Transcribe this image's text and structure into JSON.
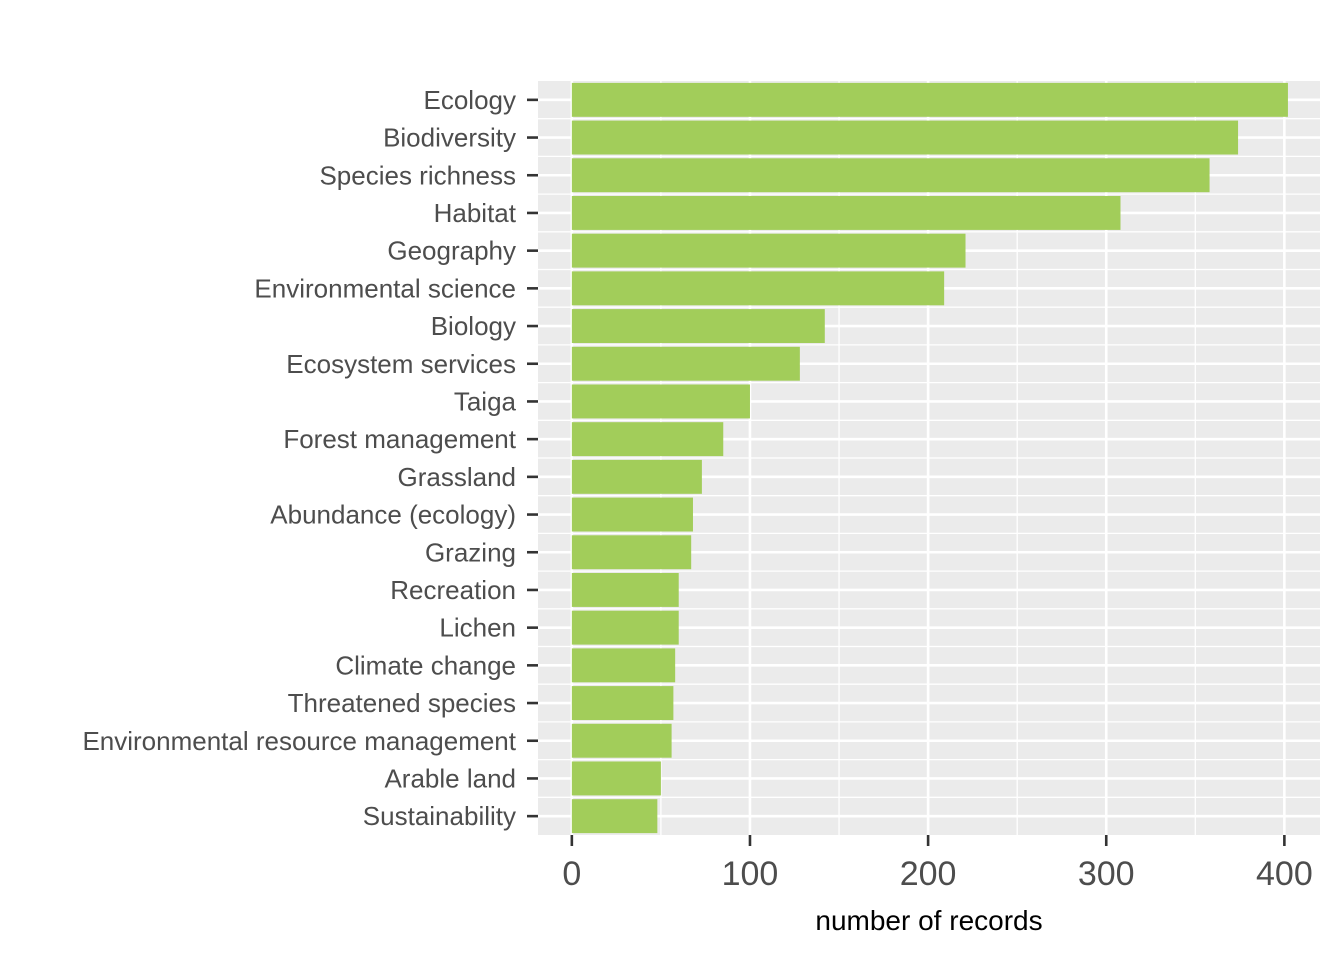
{
  "chart_data": {
    "type": "bar",
    "orientation": "horizontal",
    "title": "",
    "xlabel": "number of records",
    "ylabel": "",
    "categories": [
      "Ecology",
      "Biodiversity",
      "Species richness",
      "Habitat",
      "Geography",
      "Environmental science",
      "Biology",
      "Ecosystem services",
      "Taiga",
      "Forest management",
      "Grassland",
      "Abundance (ecology)",
      "Grazing",
      "Recreation",
      "Lichen",
      "Climate change",
      "Threatened species",
      "Environmental resource management",
      "Arable land",
      "Sustainability"
    ],
    "values": [
      402,
      374,
      358,
      308,
      221,
      209,
      142,
      128,
      100,
      85,
      73,
      68,
      67,
      60,
      60,
      58,
      57,
      56,
      50,
      48
    ],
    "xticks": [
      0,
      100,
      200,
      300,
      400
    ],
    "xtick_labels": [
      "0",
      "100",
      "200",
      "300",
      "400"
    ],
    "xlim": [
      -19,
      420
    ],
    "grid": true,
    "legend": "none",
    "colors": {
      "bar": "#a2cd5a",
      "panel_background": "#ebebeb",
      "grid_line": "#ffffff",
      "tick_label": "#4d4d4d",
      "axis_title": "#000000"
    }
  }
}
